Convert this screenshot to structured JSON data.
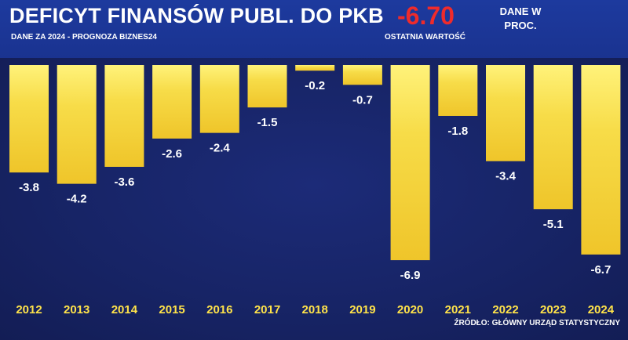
{
  "header": {
    "title": "DEFICYT FINANSÓW PUBL. DO PKB",
    "subtitle": "DANE ZA 2024 - PROGNOZA BIZNES24",
    "last_value": "-6.70",
    "last_value_label": "OSTATNIA WARTOŚĆ",
    "units": "DANE W PROC."
  },
  "source": "ŹRÓDŁO: GŁÓWNY URZĄD STATYSTYCZNY",
  "colors": {
    "bar": "#f3d23a",
    "accent_red": "#ef2b2b",
    "year_label": "#ffe34a"
  },
  "chart_data": {
    "type": "bar",
    "categories": [
      "2012",
      "2013",
      "2014",
      "2015",
      "2016",
      "2017",
      "2018",
      "2019",
      "2020",
      "2021",
      "2022",
      "2023",
      "2024"
    ],
    "values": [
      -3.8,
      -4.2,
      -3.6,
      -2.6,
      -2.4,
      -1.5,
      -0.2,
      -0.7,
      -6.9,
      -1.8,
      -3.4,
      -5.1,
      -6.7
    ],
    "data_labels": [
      "-3.8",
      "-4.2",
      "-3.6",
      "-2.6",
      "-2.4",
      "-1.5",
      "-0.2",
      "-0.7",
      "-6.9",
      "-1.8",
      "-3.4",
      "-5.1",
      "-6.7"
    ],
    "ylim": [
      -7,
      0
    ],
    "grid": false
  }
}
